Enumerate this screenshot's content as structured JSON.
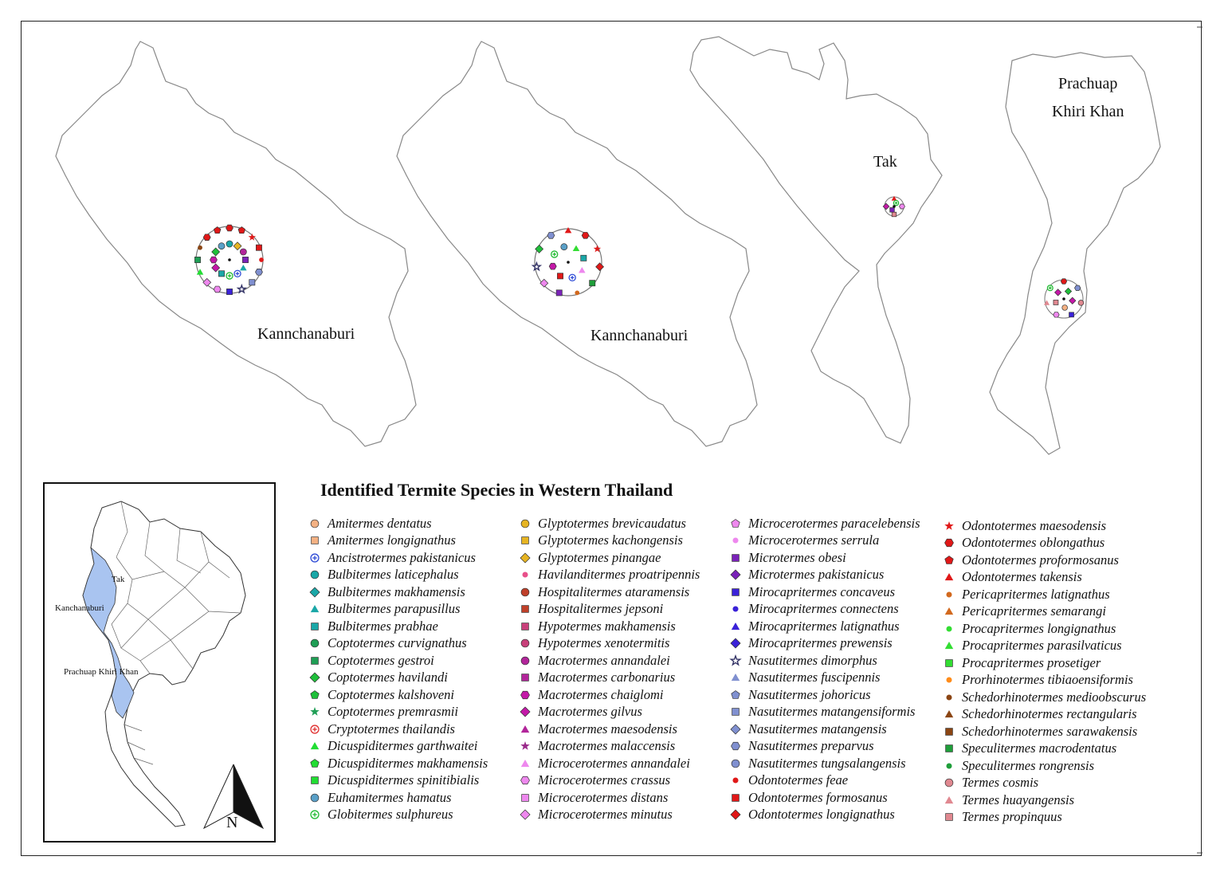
{
  "legend": {
    "title": "Identified Termite Species in Western Thailand",
    "columns": [
      [
        {
          "name": "Amitermes dentatus",
          "shape": "circle",
          "color": "#f4b183"
        },
        {
          "name": "Amitermes longignathus",
          "shape": "square",
          "color": "#f4b183"
        },
        {
          "name": "Ancistrotermes pakistanicus",
          "shape": "plus-circle",
          "color": "#2e4bd6"
        },
        {
          "name": "Bulbitermes laticephalus",
          "shape": "circle",
          "color": "#1aa7a7"
        },
        {
          "name": "Bulbitermes makhamensis",
          "shape": "diamond",
          "color": "#1aa7a7"
        },
        {
          "name": "Bulbitermes parapusillus",
          "shape": "triangle",
          "color": "#1aa7a7"
        },
        {
          "name": "Bulbitermes prabhae",
          "shape": "square",
          "color": "#1aa7a7"
        },
        {
          "name": "Coptotermes curvignathus",
          "shape": "circle",
          "color": "#1f9e55"
        },
        {
          "name": "Coptotermes gestroi",
          "shape": "square",
          "color": "#1f9e55"
        },
        {
          "name": "Coptotermes havilandi",
          "shape": "diamond",
          "color": "#1fbf3a"
        },
        {
          "name": "Coptotermes kalshoveni",
          "shape": "pentagon",
          "color": "#1fbf3a"
        },
        {
          "name": "Coptotermes premrasmii",
          "shape": "star",
          "color": "#1f9e55"
        },
        {
          "name": "Cryptotermes thailandis",
          "shape": "plus-circle",
          "color": "#e03030"
        },
        {
          "name": "Dicuspiditermes garthwaitei",
          "shape": "triangle",
          "color": "#22dd33"
        },
        {
          "name": "Dicuspiditermes makhamensis",
          "shape": "pentagon",
          "color": "#22dd33"
        },
        {
          "name": "Dicuspiditermes spinitibialis",
          "shape": "square",
          "color": "#22dd33"
        },
        {
          "name": "Euhamitermes hamatus",
          "shape": "circle",
          "color": "#5aa0c8"
        },
        {
          "name": "Globitermes sulphureus",
          "shape": "plus-circle",
          "color": "#22bb33"
        }
      ],
      [
        {
          "name": "Glyptotermes brevicaudatus",
          "shape": "circle",
          "color": "#e6b422"
        },
        {
          "name": "Glyptotermes kachongensis",
          "shape": "square",
          "color": "#e6b422"
        },
        {
          "name": "Glyptotermes pinangae",
          "shape": "diamond",
          "color": "#e6b422"
        },
        {
          "name": "Havilanditermes proatripennis",
          "shape": "dot",
          "color": "#e8508a"
        },
        {
          "name": "Hospitalitermes ataramensis",
          "shape": "circle",
          "color": "#c0402a"
        },
        {
          "name": "Hospitalitermes jepsoni",
          "shape": "square",
          "color": "#c0402a"
        },
        {
          "name": "Hypotermes makhamensis",
          "shape": "square",
          "color": "#c8407a"
        },
        {
          "name": "Hypotermes xenotermitis",
          "shape": "circle",
          "color": "#c8407a"
        },
        {
          "name": "Macrotermes annandalei",
          "shape": "circle",
          "color": "#b2259a"
        },
        {
          "name": "Macrotermes carbonarius",
          "shape": "square",
          "color": "#b2259a"
        },
        {
          "name": "Macrotermes chaiglomi",
          "shape": "hexagon",
          "color": "#c418a8"
        },
        {
          "name": "Macrotermes gilvus",
          "shape": "diamond",
          "color": "#c418a8"
        },
        {
          "name": "Macrotermes maesodensis",
          "shape": "triangle",
          "color": "#b2259a"
        },
        {
          "name": "Macrotermes malaccensis",
          "shape": "star",
          "color": "#9a2a8a"
        },
        {
          "name": "Microcerotermes annandalei",
          "shape": "triangle",
          "color": "#ee88ee"
        },
        {
          "name": "Microcerotermes crassus",
          "shape": "hexagon",
          "color": "#ee88ee"
        },
        {
          "name": "Microcerotermes distans",
          "shape": "square",
          "color": "#ee88ee"
        },
        {
          "name": "Microcerotermes minutus",
          "shape": "diamond",
          "color": "#ee88ee"
        }
      ],
      [
        {
          "name": "Microcerotermes paracelebensis",
          "shape": "pentagon",
          "color": "#ee88ee"
        },
        {
          "name": "Microcerotermes serrula",
          "shape": "dot",
          "color": "#ee88ee"
        },
        {
          "name": "Microtermes obesi",
          "shape": "square",
          "color": "#7a22b8"
        },
        {
          "name": "Microtermes pakistanicus",
          "shape": "diamond",
          "color": "#7a22b8"
        },
        {
          "name": "Mirocapritermes concaveus",
          "shape": "square",
          "color": "#3a22d8"
        },
        {
          "name": "Mirocapritermes connectens",
          "shape": "dot",
          "color": "#3a22d8"
        },
        {
          "name": "Mirocapritermes latignathus",
          "shape": "triangle",
          "color": "#3a22d8"
        },
        {
          "name": "Mirocapritermes prewensis",
          "shape": "diamond",
          "color": "#3a22d8"
        },
        {
          "name": "Nasutitermes dimorphus",
          "shape": "star-outline",
          "color": "#333366"
        },
        {
          "name": "Nasutitermes fuscipennis",
          "shape": "triangle",
          "color": "#8090d0"
        },
        {
          "name": "Nasutitermes johoricus",
          "shape": "pentagon",
          "color": "#8090d0"
        },
        {
          "name": "Nasutitermes matangensiformis",
          "shape": "square",
          "color": "#8090d0"
        },
        {
          "name": "Nasutitermes matangensis",
          "shape": "diamond",
          "color": "#8090d0"
        },
        {
          "name": "Nasutitermes preparvus",
          "shape": "hexagon",
          "color": "#8090d0"
        },
        {
          "name": "Nasutitermes tungsalangensis",
          "shape": "circle",
          "color": "#8090d0"
        },
        {
          "name": "Odontotermes feae",
          "shape": "dot",
          "color": "#e01818"
        },
        {
          "name": "Odontotermes formosanus",
          "shape": "square",
          "color": "#e01818"
        },
        {
          "name": "Odontotermes longignathus",
          "shape": "diamond",
          "color": "#e01818"
        }
      ],
      [
        {
          "name": "Odontotermes maesodensis",
          "shape": "star",
          "color": "#e01818"
        },
        {
          "name": "Odontotermes oblongathus",
          "shape": "hexagon",
          "color": "#e01818"
        },
        {
          "name": "Odontotermes proformosanus",
          "shape": "pentagon",
          "color": "#e01818"
        },
        {
          "name": "Odontotermes takensis",
          "shape": "triangle",
          "color": "#e01818"
        },
        {
          "name": "Pericapritermes latignathus",
          "shape": "dot",
          "color": "#d2691e"
        },
        {
          "name": "Pericapritermes semarangi",
          "shape": "triangle",
          "color": "#d2691e"
        },
        {
          "name": "Procapritermes longignathus",
          "shape": "dot",
          "color": "#33dd33"
        },
        {
          "name": "Procapritermes parasilvaticus",
          "shape": "triangle",
          "color": "#33dd33"
        },
        {
          "name": "Procapritermes prosetiger",
          "shape": "square",
          "color": "#33dd33"
        },
        {
          "name": "Prorhinotermes tibiaoensiformis",
          "shape": "dot",
          "color": "#ff8c1a"
        },
        {
          "name": "Schedorhinotermes medioobscurus",
          "shape": "dot",
          "color": "#8b4513"
        },
        {
          "name": "Schedorhinotermes rectangularis",
          "shape": "triangle",
          "color": "#8b4513"
        },
        {
          "name": "Schedorhinotermes sarawakensis",
          "shape": "square",
          "color": "#8b4513"
        },
        {
          "name": "Speculitermes macrodentatus",
          "shape": "square",
          "color": "#1f9e3a"
        },
        {
          "name": "Speculitermes rongrensis",
          "shape": "dot",
          "color": "#1f9e3a"
        },
        {
          "name": "Termes cosmis",
          "shape": "circle",
          "color": "#e08890"
        },
        {
          "name": "Termes huayangensis",
          "shape": "triangle",
          "color": "#e08890"
        },
        {
          "name": "Termes propinquus",
          "shape": "square",
          "color": "#e08890"
        }
      ]
    ]
  },
  "maps": {
    "kanchanaburi_1": {
      "label": "Kannchanaburi"
    },
    "kanchanaburi_2": {
      "label": "Kannchanaburi"
    },
    "tak": {
      "label": "Tak"
    },
    "prachuap": {
      "label_line1": "Prachuap",
      "label_line2": "Khiri Khan"
    }
  },
  "inset": {
    "tak": "Tak",
    "kanchanaburi": "Kanchanaburi",
    "prachuap": "Prachuap Khiri Khan",
    "north_arrow_label": "N",
    "highlight_color": "#a9c4f0"
  },
  "clusters": {
    "k1": [
      "Odontotermes oblongathus",
      "Odontotermes proformosanus",
      "Odontotermes maesodensis",
      "Odontotermes formosanus",
      "Odontotermes feae",
      "Nasutitermes preparvus",
      "Nasutitermes matangensiformis",
      "Nasutitermes dimorphus",
      "Mirocapritermes concaveus",
      "Microcerotermes crassus",
      "Microcerotermes minutus",
      "Dicuspiditermes garthwaitei",
      "Coptotermes gestroi",
      "Schedorhinotermes medioobscurus",
      "Odontotermes oblongathus",
      "Odontotermes proformosanus",
      "Glyptotermes pinangae",
      "Macrotermes annandalei",
      "Microtermes obesi",
      "Bulbitermes parapusillus",
      "Ancistrotermes pakistanicus",
      "Globitermes sulphureus",
      "Bulbitermes prabhae",
      "Macrotermes gilvus",
      "Macrotermes chaiglomi",
      "Coptotermes havilandi",
      "Euhamitermes hamatus",
      "Bulbitermes laticephalus"
    ],
    "k2": [
      "Odontotermes takensis",
      "Odontotermes oblongathus",
      "Odontotermes maesodensis",
      "Odontotermes longignathus",
      "Speculitermes macrodentatus",
      "Pericapritermes latignathus",
      "Microtermes obesi",
      "Microcerotermes minutus",
      "Nasutitermes dimorphus",
      "Coptotermes havilandi",
      "Nasutitermes preparvus",
      "Procapritermes parasilvaticus",
      "Bulbitermes prabhae",
      "Microcerotermes annandalei",
      "Ancistrotermes pakistanicus",
      "Odontotermes formosanus",
      "Macrotermes chaiglomi",
      "Globitermes sulphureus",
      "Euhamitermes hamatus"
    ],
    "tak": [
      "Odontotermes takensis",
      "Microcerotermes crassus",
      "Termes propinquus",
      "Macrotermes gilvus",
      "Globitermes sulphureus",
      "Microtermes obesi"
    ],
    "prachuap": [
      "Odontotermes oblongathus",
      "Nasutitermes preparvus",
      "Termes cosmis",
      "Mirocapritermes concaveus",
      "Microcerotermes crassus",
      "Termes huayangensis",
      "Globitermes sulphureus",
      "Coptotermes havilandi",
      "Macrotermes gilvus",
      "Amitermes dentatus",
      "Termes propinquus",
      "Macrotermes gilvus"
    ]
  }
}
